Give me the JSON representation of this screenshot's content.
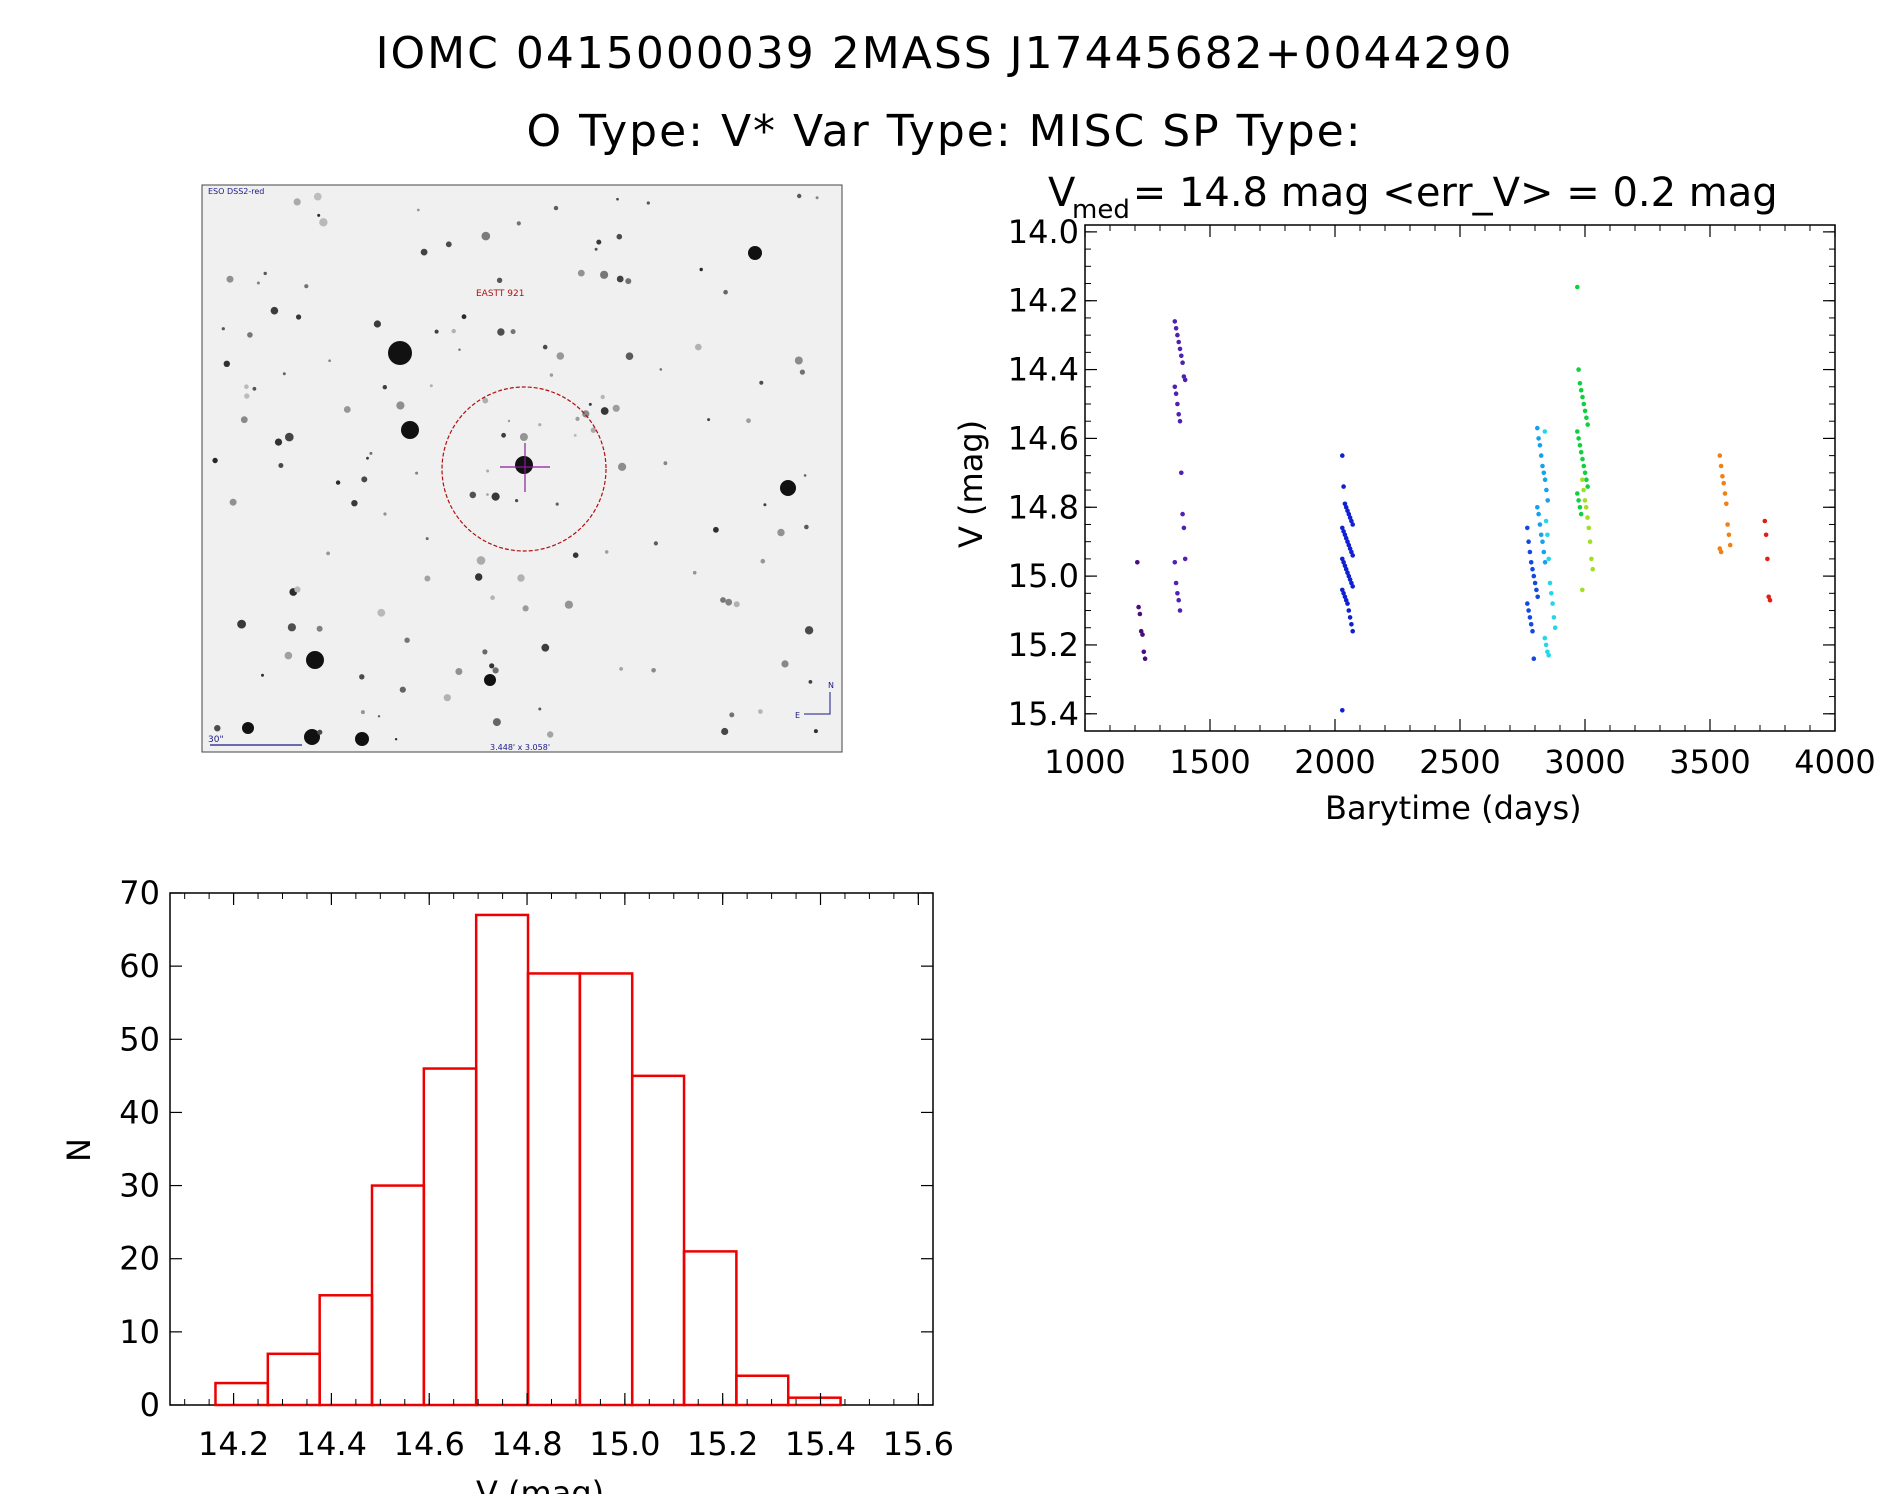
{
  "header": {
    "line1": "IOMC 0415000039    2MASS J17445682+0044290",
    "line2": "O Type: V*  Var Type: MISC  SP Type:"
  },
  "finder": {
    "survey_label": "ESO DSS2-red",
    "star_label": "EASTT 921",
    "scale_label": "30\"",
    "fov_label": "3.448' x 3.058'",
    "north_label": "N",
    "east_label": "E",
    "circle_color": "#b01010",
    "cross_color": "#8a1a9a"
  },
  "chart_data": [
    {
      "type": "scatter",
      "title_main": "V",
      "title_sub": "med",
      "title_rest": " = 14.8 mag <err_V> = 0.2 mag",
      "xlabel": "Barytime (days)",
      "ylabel": "V (mag)",
      "xlim": [
        1000,
        4000
      ],
      "ylim": [
        15.45,
        13.98
      ],
      "y_inverted": true,
      "xticks": [
        1000,
        1500,
        2000,
        2500,
        3000,
        3500,
        4000
      ],
      "yticks": [
        14.0,
        14.2,
        14.4,
        14.6,
        14.8,
        15.0,
        15.2,
        15.4
      ],
      "xtick_labels": [
        "1000",
        "1500",
        "2000",
        "2500",
        "3000",
        "3500",
        "4000"
      ],
      "ytick_labels": [
        "14.0",
        "14.2",
        "14.4",
        "14.6",
        "14.8",
        "15.0",
        "15.2",
        "15.4"
      ],
      "color_scale": "rainbow by time",
      "clusters": [
        {
          "x": 1230,
          "color": "#4b0d7a",
          "y": [
            14.96,
            15.09,
            15.11,
            15.16,
            15.17,
            15.22,
            15.24
          ]
        },
        {
          "x": 1380,
          "color": "#5020b0",
          "y": [
            14.26,
            14.28,
            14.3,
            14.32,
            14.34,
            14.36,
            14.38,
            14.42,
            14.43,
            14.45,
            14.47,
            14.5,
            14.53,
            14.55,
            14.7,
            14.82,
            14.86,
            14.95,
            14.96,
            15.02,
            15.05,
            15.07,
            15.1
          ]
        },
        {
          "x": 2050,
          "color": "#1020d0",
          "y": [
            14.65,
            14.74,
            14.79,
            14.8,
            14.81,
            14.82,
            14.83,
            14.84,
            14.85,
            14.86,
            14.87,
            14.88,
            14.89,
            14.9,
            14.91,
            14.92,
            14.93,
            14.94,
            14.95,
            14.96,
            14.97,
            14.98,
            14.99,
            15.0,
            15.01,
            15.02,
            15.03,
            15.04,
            15.05,
            15.06,
            15.07,
            15.08,
            15.1,
            15.12,
            15.14,
            15.16,
            15.39
          ]
        },
        {
          "x": 2790,
          "color": "#1448e0",
          "y": [
            14.86,
            14.9,
            14.93,
            14.96,
            14.98,
            15.0,
            15.02,
            15.04,
            15.06,
            15.08,
            15.1,
            15.12,
            15.14,
            15.16,
            15.24
          ]
        },
        {
          "x": 2830,
          "color": "#18a0f0",
          "y": [
            14.57,
            14.6,
            14.62,
            14.65,
            14.68,
            14.7,
            14.72,
            14.75,
            14.78,
            14.8,
            14.82,
            14.85,
            14.88,
            14.9,
            14.93,
            14.96
          ]
        },
        {
          "x": 2860,
          "color": "#20d8e8",
          "y": [
            14.58,
            14.84,
            14.88,
            14.95,
            15.02,
            15.05,
            15.08,
            15.12,
            15.15,
            15.18,
            15.2,
            15.22,
            15.23
          ]
        },
        {
          "x": 2990,
          "color": "#10d040",
          "y": [
            14.16,
            14.4,
            14.44,
            14.46,
            14.48,
            14.5,
            14.52,
            14.54,
            14.56,
            14.58,
            14.6,
            14.62,
            14.64,
            14.66,
            14.68,
            14.7,
            14.72,
            14.74,
            14.76,
            14.78,
            14.8,
            14.82
          ]
        },
        {
          "x": 3010,
          "color": "#a0e020",
          "y": [
            14.72,
            14.75,
            14.78,
            14.8,
            14.83,
            14.86,
            14.9,
            14.95,
            14.98,
            15.04
          ]
        },
        {
          "x": 3560,
          "color": "#f08010",
          "y": [
            14.65,
            14.68,
            14.71,
            14.73,
            14.76,
            14.79,
            14.85,
            14.88,
            14.91,
            14.92,
            14.93
          ]
        },
        {
          "x": 3740,
          "color": "#e02010",
          "y": [
            14.84,
            14.88,
            14.95,
            15.06,
            15.07
          ]
        }
      ]
    },
    {
      "type": "bar",
      "subtype": "histogram",
      "xlabel": "V (mag)",
      "ylabel": "N",
      "xlim": [
        14.07,
        15.63
      ],
      "ylim": [
        0,
        70
      ],
      "bar_color": "#ee0000",
      "bin_edges": [
        14.163,
        14.27,
        14.376,
        14.483,
        14.589,
        14.696,
        14.802,
        14.908,
        15.015,
        15.121,
        15.228,
        15.334,
        15.441
      ],
      "values": [
        3,
        7,
        15,
        30,
        46,
        67,
        59,
        59,
        45,
        21,
        4,
        1
      ],
      "xticks": [
        14.2,
        14.4,
        14.6,
        14.8,
        15.0,
        15.2,
        15.4,
        15.6
      ],
      "yticks": [
        0,
        10,
        20,
        30,
        40,
        50,
        60,
        70
      ],
      "xtick_labels": [
        "14.2",
        "14.4",
        "14.6",
        "14.8",
        "15.0",
        "15.2",
        "15.4",
        "15.6"
      ],
      "ytick_labels": [
        "0",
        "10",
        "20",
        "30",
        "40",
        "50",
        "60",
        "70"
      ]
    }
  ]
}
